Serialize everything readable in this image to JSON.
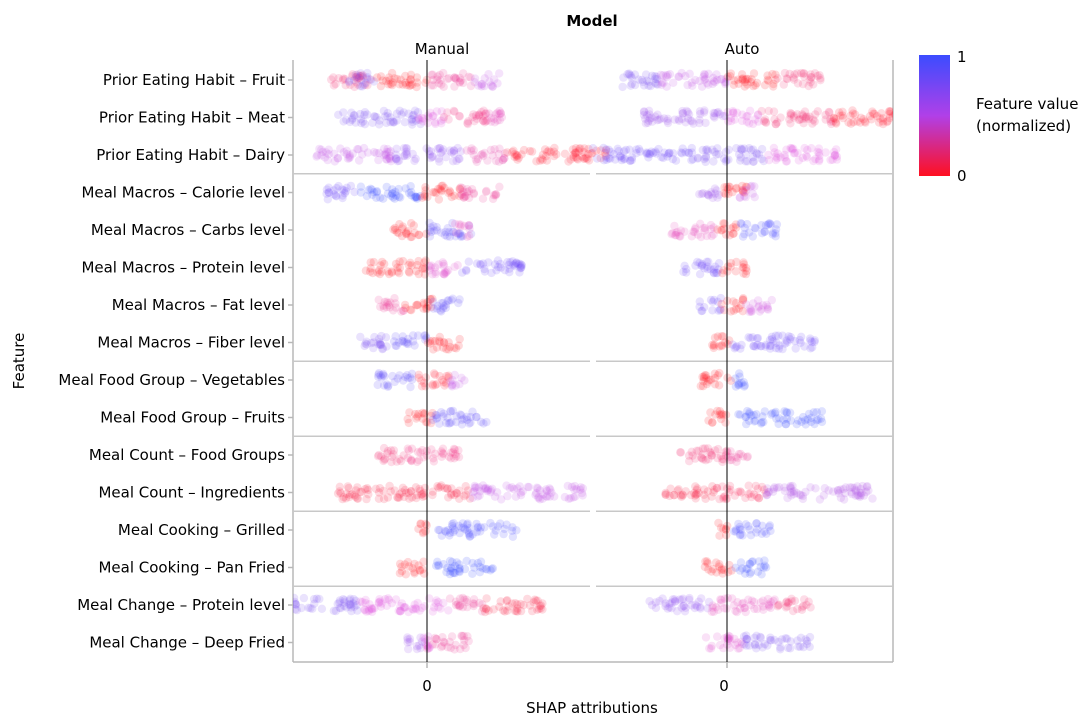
{
  "chart_data": {
    "type": "scatter",
    "subtype": "shap-beeswarm",
    "title": "Model",
    "xlabel": "SHAP attributions",
    "ylabel": "Feature",
    "panels": [
      "Manual",
      "Auto"
    ],
    "x_tick_label": "0",
    "legend": {
      "title_line1": "Feature value",
      "title_line2": "(normalized)",
      "max_label": "1",
      "min_label": "0",
      "high_color": "#3b4cff",
      "mid_color": "#b040e8",
      "low_color": "#ff1020",
      "placement": "right"
    },
    "colors": {
      "high": "#3b4cff",
      "mid": "#e050e0",
      "low": "#ff1020",
      "zero_line": "#000000",
      "group_line": "#c8c8c8",
      "frame": "#b8b8b8"
    },
    "groups": [
      {
        "name": "Prior Eating Habit",
        "features": [
          0,
          1,
          2
        ]
      },
      {
        "name": "Meal Macros",
        "features": [
          3,
          4,
          5,
          6,
          7
        ]
      },
      {
        "name": "Meal Food Group",
        "features": [
          8,
          9
        ]
      },
      {
        "name": "Meal Count",
        "features": [
          10,
          11
        ]
      },
      {
        "name": "Meal Cooking",
        "features": [
          12,
          13
        ]
      },
      {
        "name": "Meal Change",
        "features": [
          14,
          15
        ]
      }
    ],
    "features": [
      {
        "label": "Prior Eating Habit – Fruit",
        "manual": [
          {
            "lo": -0.9,
            "hi": -0.5,
            "f": 0.2
          },
          {
            "lo": -0.7,
            "hi": -0.45,
            "f": 0.8
          },
          {
            "lo": -0.45,
            "hi": 0.0,
            "f": 0.0
          },
          {
            "lo": 0.0,
            "hi": 0.42,
            "f": 0.3
          },
          {
            "lo": 0.42,
            "hi": 0.65,
            "f": 0.6
          }
        ],
        "auto": [
          {
            "lo": -0.95,
            "hi": -0.55,
            "f": 0.8
          },
          {
            "lo": -0.6,
            "hi": 0.0,
            "f": 0.6
          },
          {
            "lo": 0.0,
            "hi": 0.45,
            "f": 0.0
          },
          {
            "lo": 0.45,
            "hi": 0.85,
            "f": 0.2
          }
        ]
      },
      {
        "label": "Prior Eating Habit – Meat",
        "manual": [
          {
            "lo": -0.8,
            "hi": -0.05,
            "f": 0.8
          },
          {
            "lo": -0.1,
            "hi": 0.15,
            "f": 0.5
          },
          {
            "lo": 0.15,
            "hi": 0.55,
            "f": 0.25
          },
          {
            "lo": 0.55,
            "hi": 0.75,
            "f": 0.4
          }
        ],
        "auto": [
          {
            "lo": -0.75,
            "hi": 0.0,
            "f": 0.7
          },
          {
            "lo": 0.0,
            "hi": 0.3,
            "f": 0.5
          },
          {
            "lo": 0.3,
            "hi": 0.95,
            "f": 0.2
          },
          {
            "lo": 0.95,
            "hi": 1.7,
            "f": 0.05
          }
        ]
      },
      {
        "label": "Prior Eating Habit – Dairy",
        "manual": [
          {
            "lo": -1.0,
            "hi": -0.3,
            "f": 0.6
          },
          {
            "lo": -0.3,
            "hi": 0.35,
            "f": 0.75
          },
          {
            "lo": 0.35,
            "hi": 0.7,
            "f": 0.35
          },
          {
            "lo": 0.7,
            "hi": 1.6,
            "f": 0.05
          }
        ],
        "auto": [
          {
            "lo": -1.2,
            "hi": -0.3,
            "f": 0.85
          },
          {
            "lo": -0.3,
            "hi": 0.35,
            "f": 0.8
          },
          {
            "lo": 0.35,
            "hi": 1.0,
            "f": 0.5
          }
        ]
      },
      {
        "label": "Meal Macros – Calorie level",
        "manual": [
          {
            "lo": -0.9,
            "hi": -0.6,
            "f": 0.85
          },
          {
            "lo": -0.6,
            "hi": -0.05,
            "f": 1.0
          },
          {
            "lo": -0.05,
            "hi": 0.3,
            "f": 0.0
          },
          {
            "lo": 0.3,
            "hi": 0.65,
            "f": 0.3
          }
        ],
        "auto": [
          {
            "lo": -0.25,
            "hi": -0.05,
            "f": 0.7
          },
          {
            "lo": -0.05,
            "hi": 0.2,
            "f": 0.0
          },
          {
            "lo": 0.1,
            "hi": 0.25,
            "f": 0.6
          }
        ]
      },
      {
        "label": "Meal Macros – Carbs level",
        "manual": [
          {
            "lo": -0.3,
            "hi": 0.0,
            "f": 0.0
          },
          {
            "lo": 0.0,
            "hi": 0.4,
            "f": 0.9
          },
          {
            "lo": 0.25,
            "hi": 0.4,
            "f": 0.4
          }
        ],
        "auto": [
          {
            "lo": -0.5,
            "hi": -0.1,
            "f": 0.4
          },
          {
            "lo": -0.1,
            "hi": 0.1,
            "f": 0.0
          },
          {
            "lo": 0.1,
            "hi": 0.45,
            "f": 0.95
          }
        ]
      },
      {
        "label": "Meal Macros – Protein level",
        "manual": [
          {
            "lo": -0.55,
            "hi": 0.0,
            "f": 0.0
          },
          {
            "lo": 0.0,
            "hi": 0.3,
            "f": 0.45
          },
          {
            "lo": 0.3,
            "hi": 0.85,
            "f": 0.85
          }
        ],
        "auto": [
          {
            "lo": -0.4,
            "hi": -0.05,
            "f": 0.85
          },
          {
            "lo": -0.05,
            "hi": 0.18,
            "f": 0.0
          }
        ]
      },
      {
        "label": "Meal Macros – Fat level",
        "manual": [
          {
            "lo": -0.45,
            "hi": -0.2,
            "f": 0.3
          },
          {
            "lo": -0.2,
            "hi": 0.05,
            "f": 0.0
          },
          {
            "lo": 0.05,
            "hi": 0.3,
            "f": 0.9
          }
        ],
        "auto": [
          {
            "lo": -0.25,
            "hi": -0.05,
            "f": 0.85
          },
          {
            "lo": -0.05,
            "hi": 0.15,
            "f": 0.0
          },
          {
            "lo": 0.15,
            "hi": 0.4,
            "f": 0.55
          }
        ]
      },
      {
        "label": "Meal Macros – Fiber level",
        "manual": [
          {
            "lo": -0.6,
            "hi": -0.3,
            "f": 0.8
          },
          {
            "lo": -0.3,
            "hi": 0.0,
            "f": 0.9
          },
          {
            "lo": 0.0,
            "hi": 0.3,
            "f": 0.0
          }
        ],
        "auto": [
          {
            "lo": -0.15,
            "hi": 0.05,
            "f": 0.0
          },
          {
            "lo": 0.05,
            "hi": 0.8,
            "f": 0.85
          }
        ]
      },
      {
        "label": "Meal Food Group – Vegetables",
        "manual": [
          {
            "lo": -0.45,
            "hi": -0.1,
            "f": 0.9
          },
          {
            "lo": -0.1,
            "hi": 0.2,
            "f": 0.05
          },
          {
            "lo": 0.2,
            "hi": 0.35,
            "f": 0.6
          }
        ],
        "auto": [
          {
            "lo": -0.25,
            "hi": 0.05,
            "f": 0.0
          },
          {
            "lo": 0.05,
            "hi": 0.2,
            "f": 1.0
          }
        ]
      },
      {
        "label": "Meal Food Group – Fruits",
        "manual": [
          {
            "lo": -0.18,
            "hi": 0.05,
            "f": 0.0
          },
          {
            "lo": 0.05,
            "hi": 0.55,
            "f": 0.9
          }
        ],
        "auto": [
          {
            "lo": -0.2,
            "hi": 0.0,
            "f": 0.0
          },
          {
            "lo": 0.1,
            "hi": 0.85,
            "f": 1.0
          }
        ]
      },
      {
        "label": "Meal Count – Food Groups",
        "manual": [
          {
            "lo": -0.45,
            "hi": -0.2,
            "f": 0.2
          },
          {
            "lo": -0.2,
            "hi": 0.3,
            "f": 0.25
          }
        ],
        "auto": [
          {
            "lo": -0.45,
            "hi": 0.0,
            "f": 0.2
          },
          {
            "lo": 0.0,
            "hi": 0.2,
            "f": 0.3
          }
        ]
      },
      {
        "label": "Meal Count – Ingredients",
        "manual": [
          {
            "lo": -0.8,
            "hi": -0.3,
            "f": 0.1
          },
          {
            "lo": -0.3,
            "hi": 0.4,
            "f": 0.1
          },
          {
            "lo": 0.4,
            "hi": 1.4,
            "f": 0.6
          }
        ],
        "auto": [
          {
            "lo": -0.55,
            "hi": -0.1,
            "f": 0.1
          },
          {
            "lo": -0.1,
            "hi": 0.35,
            "f": 0.15
          },
          {
            "lo": 0.35,
            "hi": 1.3,
            "f": 0.65
          }
        ]
      },
      {
        "label": "Meal Cooking – Grilled",
        "manual": [
          {
            "lo": -0.1,
            "hi": 0.0,
            "f": 0.0
          },
          {
            "lo": 0.1,
            "hi": 0.8,
            "f": 0.95
          }
        ],
        "auto": [
          {
            "lo": -0.08,
            "hi": 0.02,
            "f": 0.0
          },
          {
            "lo": 0.05,
            "hi": 0.4,
            "f": 0.95
          }
        ]
      },
      {
        "label": "Meal Cooking – Pan Fried",
        "manual": [
          {
            "lo": -0.25,
            "hi": 0.0,
            "f": 0.0
          },
          {
            "lo": 0.05,
            "hi": 0.6,
            "f": 1.0
          }
        ],
        "auto": [
          {
            "lo": -0.2,
            "hi": 0.05,
            "f": 0.0
          },
          {
            "lo": 0.05,
            "hi": 0.35,
            "f": 1.0
          }
        ]
      },
      {
        "label": "Meal Change – Protein level",
        "manual": [
          {
            "lo": -1.2,
            "hi": -0.6,
            "f": 0.8
          },
          {
            "lo": -0.6,
            "hi": 0.2,
            "f": 0.5
          },
          {
            "lo": 0.2,
            "hi": 0.5,
            "f": 0.3
          },
          {
            "lo": 0.5,
            "hi": 1.05,
            "f": 0.1
          }
        ],
        "auto": [
          {
            "lo": -0.7,
            "hi": -0.15,
            "f": 0.75
          },
          {
            "lo": -0.15,
            "hi": 0.45,
            "f": 0.4
          },
          {
            "lo": 0.45,
            "hi": 0.75,
            "f": 0.2
          }
        ]
      },
      {
        "label": "Meal Change – Deep Fried",
        "manual": [
          {
            "lo": -0.18,
            "hi": 0.0,
            "f": 0.7
          },
          {
            "lo": 0.0,
            "hi": 0.4,
            "f": 0.3
          },
          {
            "lo": -0.05,
            "hi": 0.05,
            "f": 0.5
          }
        ],
        "auto": [
          {
            "lo": -0.2,
            "hi": 0.15,
            "f": 0.45
          },
          {
            "lo": 0.15,
            "hi": 0.75,
            "f": 0.8
          }
        ]
      }
    ]
  }
}
